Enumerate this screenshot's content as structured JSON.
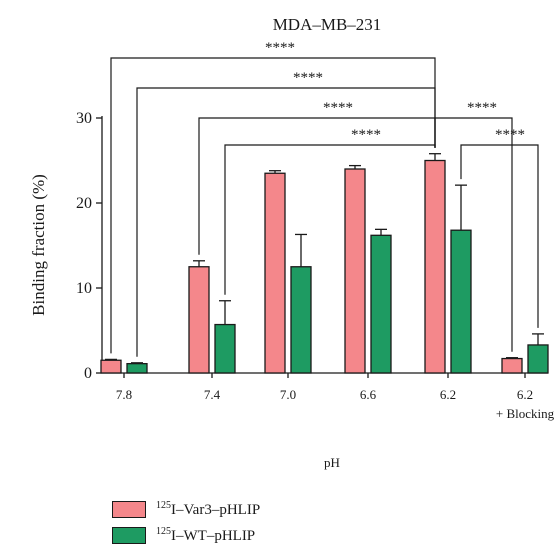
{
  "chart_data": {
    "type": "bar",
    "title": "MDA–MB–231",
    "xlabel": "pH",
    "ylabel": "Binding fraction (%)",
    "ylim": [
      0,
      30
    ],
    "yticks": [
      "0",
      "10",
      "20",
      "30"
    ],
    "categories": [
      "7.8",
      "7.4",
      "7.0",
      "6.6",
      "6.2",
      "6.2"
    ],
    "category_notes": [
      "",
      "",
      "",
      "",
      "",
      "+ Blocking"
    ],
    "series": [
      {
        "name": "Var3–pHLIP",
        "isotope": "125",
        "prefix": "I–",
        "color": "#f4878b",
        "values": [
          1.5,
          12.5,
          23.5,
          24.0,
          25.0,
          1.7
        ],
        "errors": [
          0.1,
          0.7,
          0.3,
          0.4,
          0.8,
          0.1
        ]
      },
      {
        "name": "WT–pHLIP",
        "isotope": "125",
        "prefix": "I–",
        "color": "#1e9b62",
        "values": [
          1.1,
          5.7,
          12.5,
          16.2,
          16.8,
          3.3
        ],
        "errors": [
          0.1,
          2.8,
          3.8,
          0.7,
          5.3,
          1.3
        ]
      }
    ],
    "significance_label": "****",
    "significance": [
      {
        "from": [
          0,
          0
        ],
        "to": [
          4,
          0
        ]
      },
      {
        "from": [
          0,
          1
        ],
        "to": [
          4,
          0
        ]
      },
      {
        "from": [
          1,
          0
        ],
        "to": [
          4,
          0
        ]
      },
      {
        "from": [
          1,
          1
        ],
        "to": [
          4,
          0
        ]
      },
      {
        "from": [
          4,
          0
        ],
        "to": [
          5,
          0
        ]
      },
      {
        "from": [
          4,
          1
        ],
        "to": [
          5,
          1
        ]
      }
    ]
  }
}
